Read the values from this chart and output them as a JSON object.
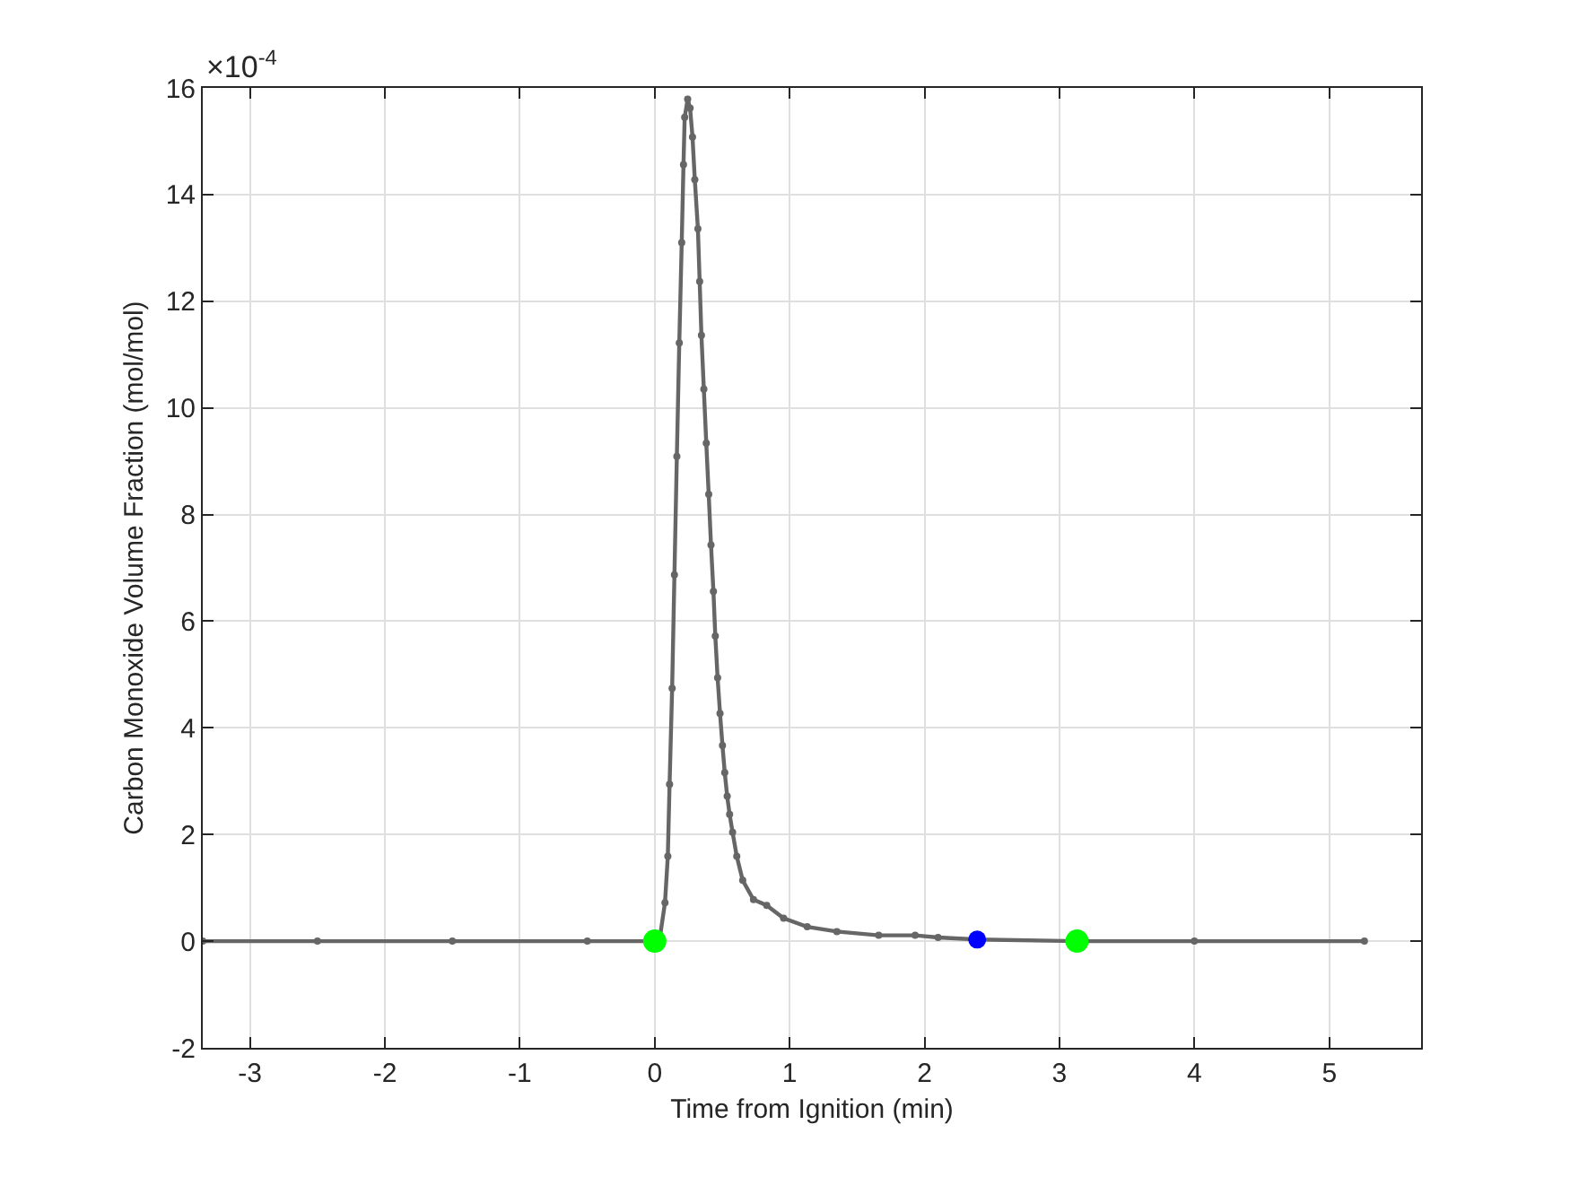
{
  "chart_data": {
    "type": "line",
    "xlabel": "Time from Ignition (min)",
    "ylabel": "Carbon Monoxide Volume Fraction (mol/mol)",
    "annotations": [
      "×10$^{-4}$"
    ],
    "xlim": [
      -3.35,
      5.68
    ],
    "ylim": [
      -2,
      16
    ],
    "xticks": [
      -3,
      -2,
      -1,
      0,
      1,
      2,
      3,
      4,
      5
    ],
    "yticks": [
      -2,
      0,
      2,
      4,
      6,
      8,
      10,
      12,
      14,
      16
    ],
    "grid": true,
    "marker": "circle",
    "line_style": "solid",
    "series": [
      {
        "color": "#666666",
        "x": [
          -3.35,
          -2.5,
          -1.5,
          -0.5,
          0,
          0.04,
          0.076,
          0.097,
          0.11,
          0.129,
          0.146,
          0.164,
          0.182,
          0.2,
          0.213,
          0.222,
          0.244,
          0.262,
          0.28,
          0.297,
          0.32,
          0.333,
          0.346,
          0.364,
          0.382,
          0.4,
          0.417,
          0.435,
          0.449,
          0.466,
          0.484,
          0.502,
          0.519,
          0.537,
          0.555,
          0.577,
          0.608,
          0.652,
          0.732,
          0.83,
          0.955,
          1.13,
          1.35,
          1.66,
          1.93,
          2.1,
          2.39,
          3.13,
          4,
          5.26
        ],
        "values": [
          0,
          0,
          0,
          0,
          0,
          0.1,
          0.72,
          1.59,
          2.94,
          4.74,
          6.87,
          9.09,
          11.22,
          13.1,
          14.56,
          15.45,
          15.79,
          15.62,
          15.08,
          14.28,
          13.36,
          12.37,
          11.36,
          10.35,
          9.34,
          8.38,
          7.43,
          6.56,
          5.72,
          4.94,
          4.27,
          3.67,
          3.16,
          2.72,
          2.38,
          2.04,
          1.59,
          1.14,
          0.78,
          0.67,
          0.43,
          0.27,
          0.18,
          0.11,
          0.11,
          0.07,
          0.03,
          0,
          0,
          0
        ]
      },
      {
        "type": "scatter",
        "color": "#00ff00",
        "x": [
          0,
          3.13
        ],
        "values": [
          0,
          0
        ]
      },
      {
        "type": "scatter",
        "color": "#0000ff",
        "x": [
          2.39
        ],
        "values": [
          0.03
        ]
      }
    ]
  }
}
